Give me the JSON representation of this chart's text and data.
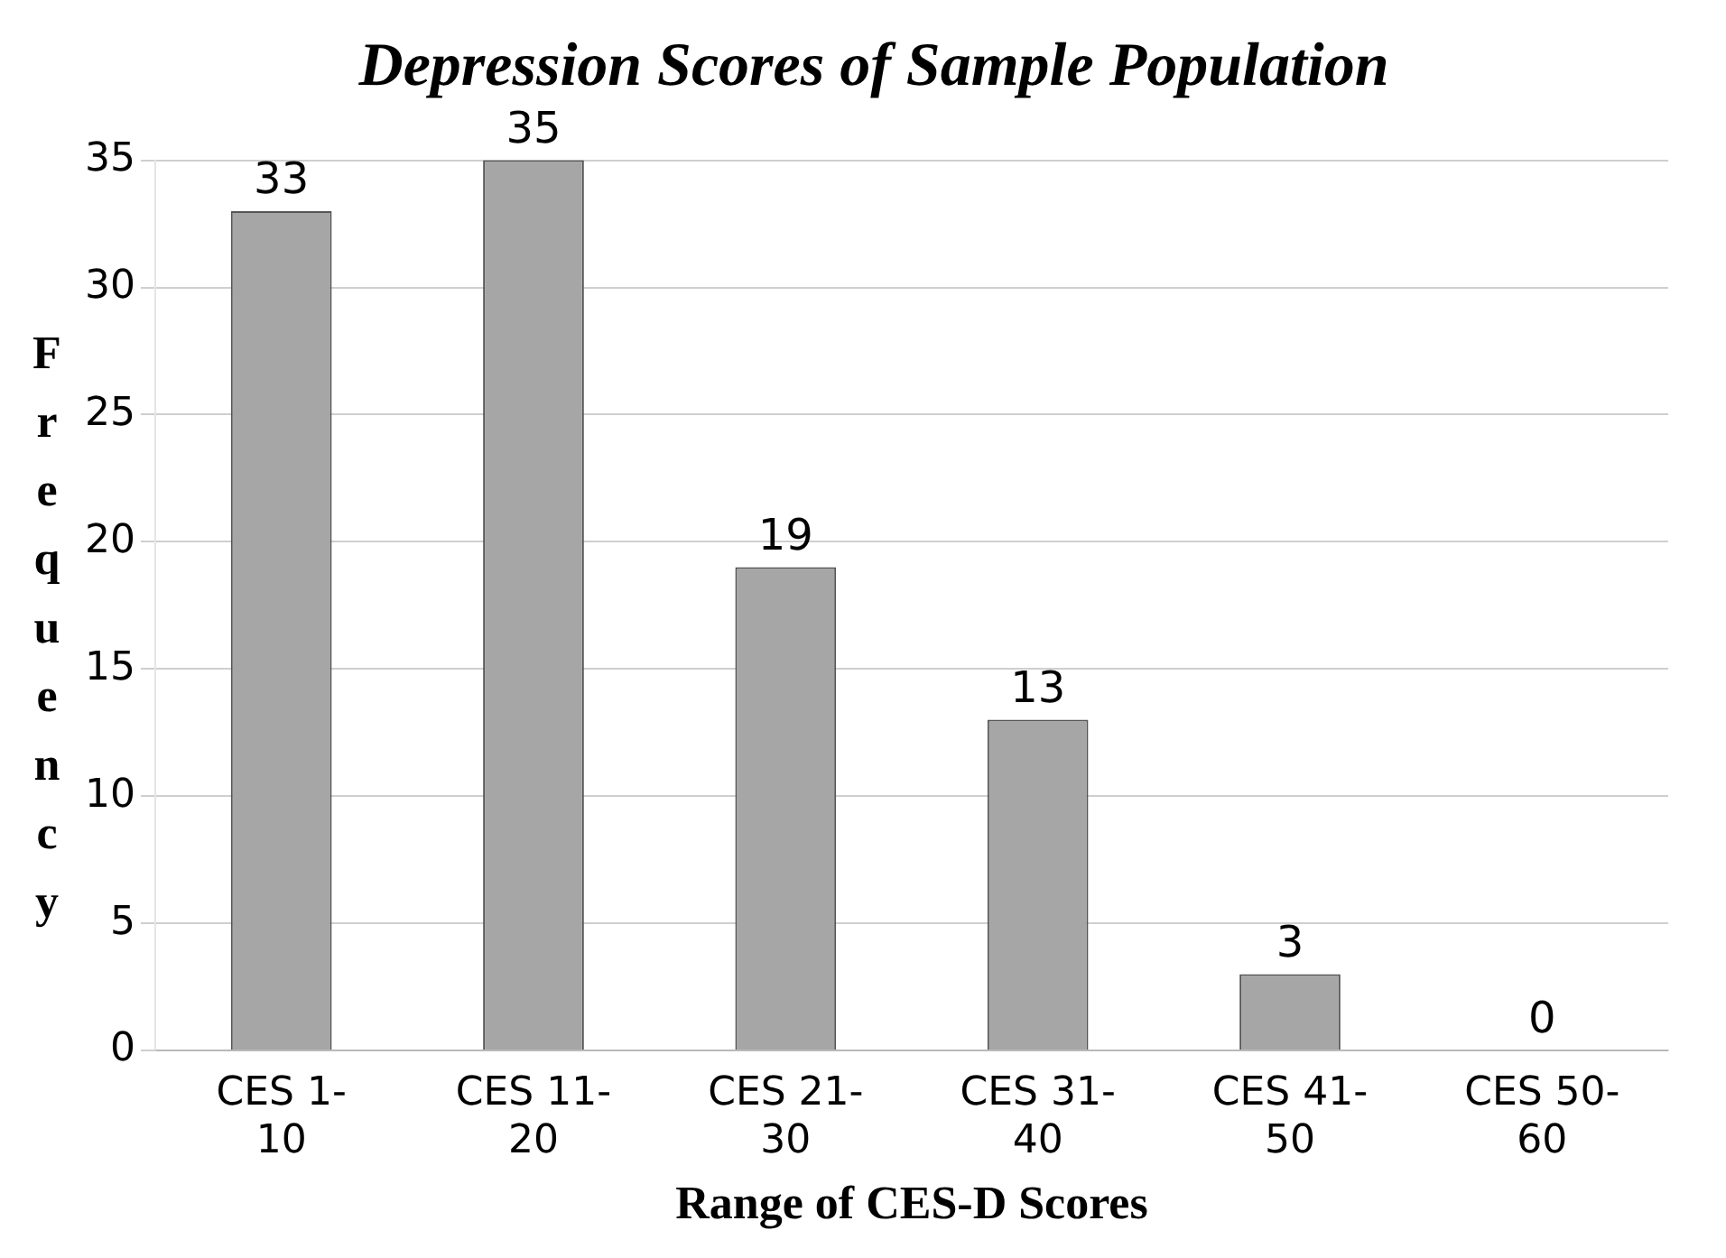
{
  "chart_data": {
    "type": "bar",
    "title": "Depression Scores of Sample Population",
    "xlabel": "Range of CES-D Scores",
    "ylabel": "Frequency",
    "categories": [
      "CES 1-10",
      "CES 11-20",
      "CES 21-30",
      "CES 31-40",
      "CES 41-50",
      "CES 50-60"
    ],
    "values": [
      33,
      35,
      19,
      13,
      3,
      0
    ],
    "color": "#a6a6a6",
    "ylim": [
      0,
      35
    ],
    "yticks": [
      0,
      5,
      10,
      15,
      20,
      25,
      30,
      35
    ],
    "grid": "y",
    "data_labels": true,
    "legend": false
  }
}
